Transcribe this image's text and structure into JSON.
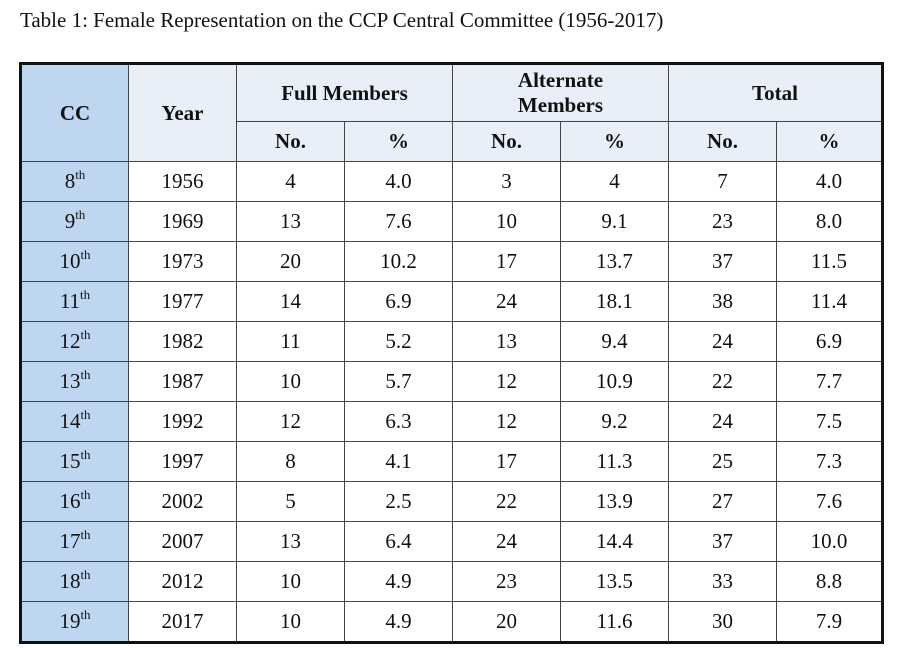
{
  "caption": "Table 1: Female Representation on the CCP Central Committee (1956-2017)",
  "colors": {
    "cc_column": "#bed6ef",
    "header": "#e9eff8",
    "border": "#111111"
  },
  "headers": {
    "cc": "CC",
    "year": "Year",
    "full": "Full Members",
    "alternate": "Alternate Members",
    "total": "Total",
    "no": "No.",
    "pct": "%"
  },
  "rows": [
    {
      "cc": "8",
      "sup": "th",
      "year": "1956",
      "full_no": "4",
      "full_pct": "4.0",
      "alt_no": "3",
      "alt_pct": "4",
      "tot_no": "7",
      "tot_pct": "4.0"
    },
    {
      "cc": "9",
      "sup": "th",
      "year": "1969",
      "full_no": "13",
      "full_pct": "7.6",
      "alt_no": "10",
      "alt_pct": "9.1",
      "tot_no": "23",
      "tot_pct": "8.0"
    },
    {
      "cc": "10",
      "sup": "th",
      "year": "1973",
      "full_no": "20",
      "full_pct": "10.2",
      "alt_no": "17",
      "alt_pct": "13.7",
      "tot_no": "37",
      "tot_pct": "11.5"
    },
    {
      "cc": "11",
      "sup": "th",
      "year": "1977",
      "full_no": "14",
      "full_pct": "6.9",
      "alt_no": "24",
      "alt_pct": "18.1",
      "tot_no": "38",
      "tot_pct": "11.4"
    },
    {
      "cc": "12",
      "sup": "th",
      "year": "1982",
      "full_no": "11",
      "full_pct": "5.2",
      "alt_no": "13",
      "alt_pct": "9.4",
      "tot_no": "24",
      "tot_pct": "6.9"
    },
    {
      "cc": "13",
      "sup": "th",
      "year": "1987",
      "full_no": "10",
      "full_pct": "5.7",
      "alt_no": "12",
      "alt_pct": "10.9",
      "tot_no": "22",
      "tot_pct": "7.7"
    },
    {
      "cc": "14",
      "sup": "th",
      "year": "1992",
      "full_no": "12",
      "full_pct": "6.3",
      "alt_no": "12",
      "alt_pct": "9.2",
      "tot_no": "24",
      "tot_pct": "7.5"
    },
    {
      "cc": "15",
      "sup": "th",
      "year": "1997",
      "full_no": "8",
      "full_pct": "4.1",
      "alt_no": "17",
      "alt_pct": "11.3",
      "tot_no": "25",
      "tot_pct": "7.3"
    },
    {
      "cc": "16",
      "sup": "th",
      "year": "2002",
      "full_no": "5",
      "full_pct": "2.5",
      "alt_no": "22",
      "alt_pct": "13.9",
      "tot_no": "27",
      "tot_pct": "7.6"
    },
    {
      "cc": "17",
      "sup": "th",
      "year": "2007",
      "full_no": "13",
      "full_pct": "6.4",
      "alt_no": "24",
      "alt_pct": "14.4",
      "tot_no": "37",
      "tot_pct": "10.0"
    },
    {
      "cc": "18",
      "sup": "th",
      "year": "2012",
      "full_no": "10",
      "full_pct": "4.9",
      "alt_no": "23",
      "alt_pct": "13.5",
      "tot_no": "33",
      "tot_pct": "8.8"
    },
    {
      "cc": "19",
      "sup": "th",
      "year": "2017",
      "full_no": "10",
      "full_pct": "4.9",
      "alt_no": "20",
      "alt_pct": "11.6",
      "tot_no": "30",
      "tot_pct": "7.9"
    }
  ]
}
